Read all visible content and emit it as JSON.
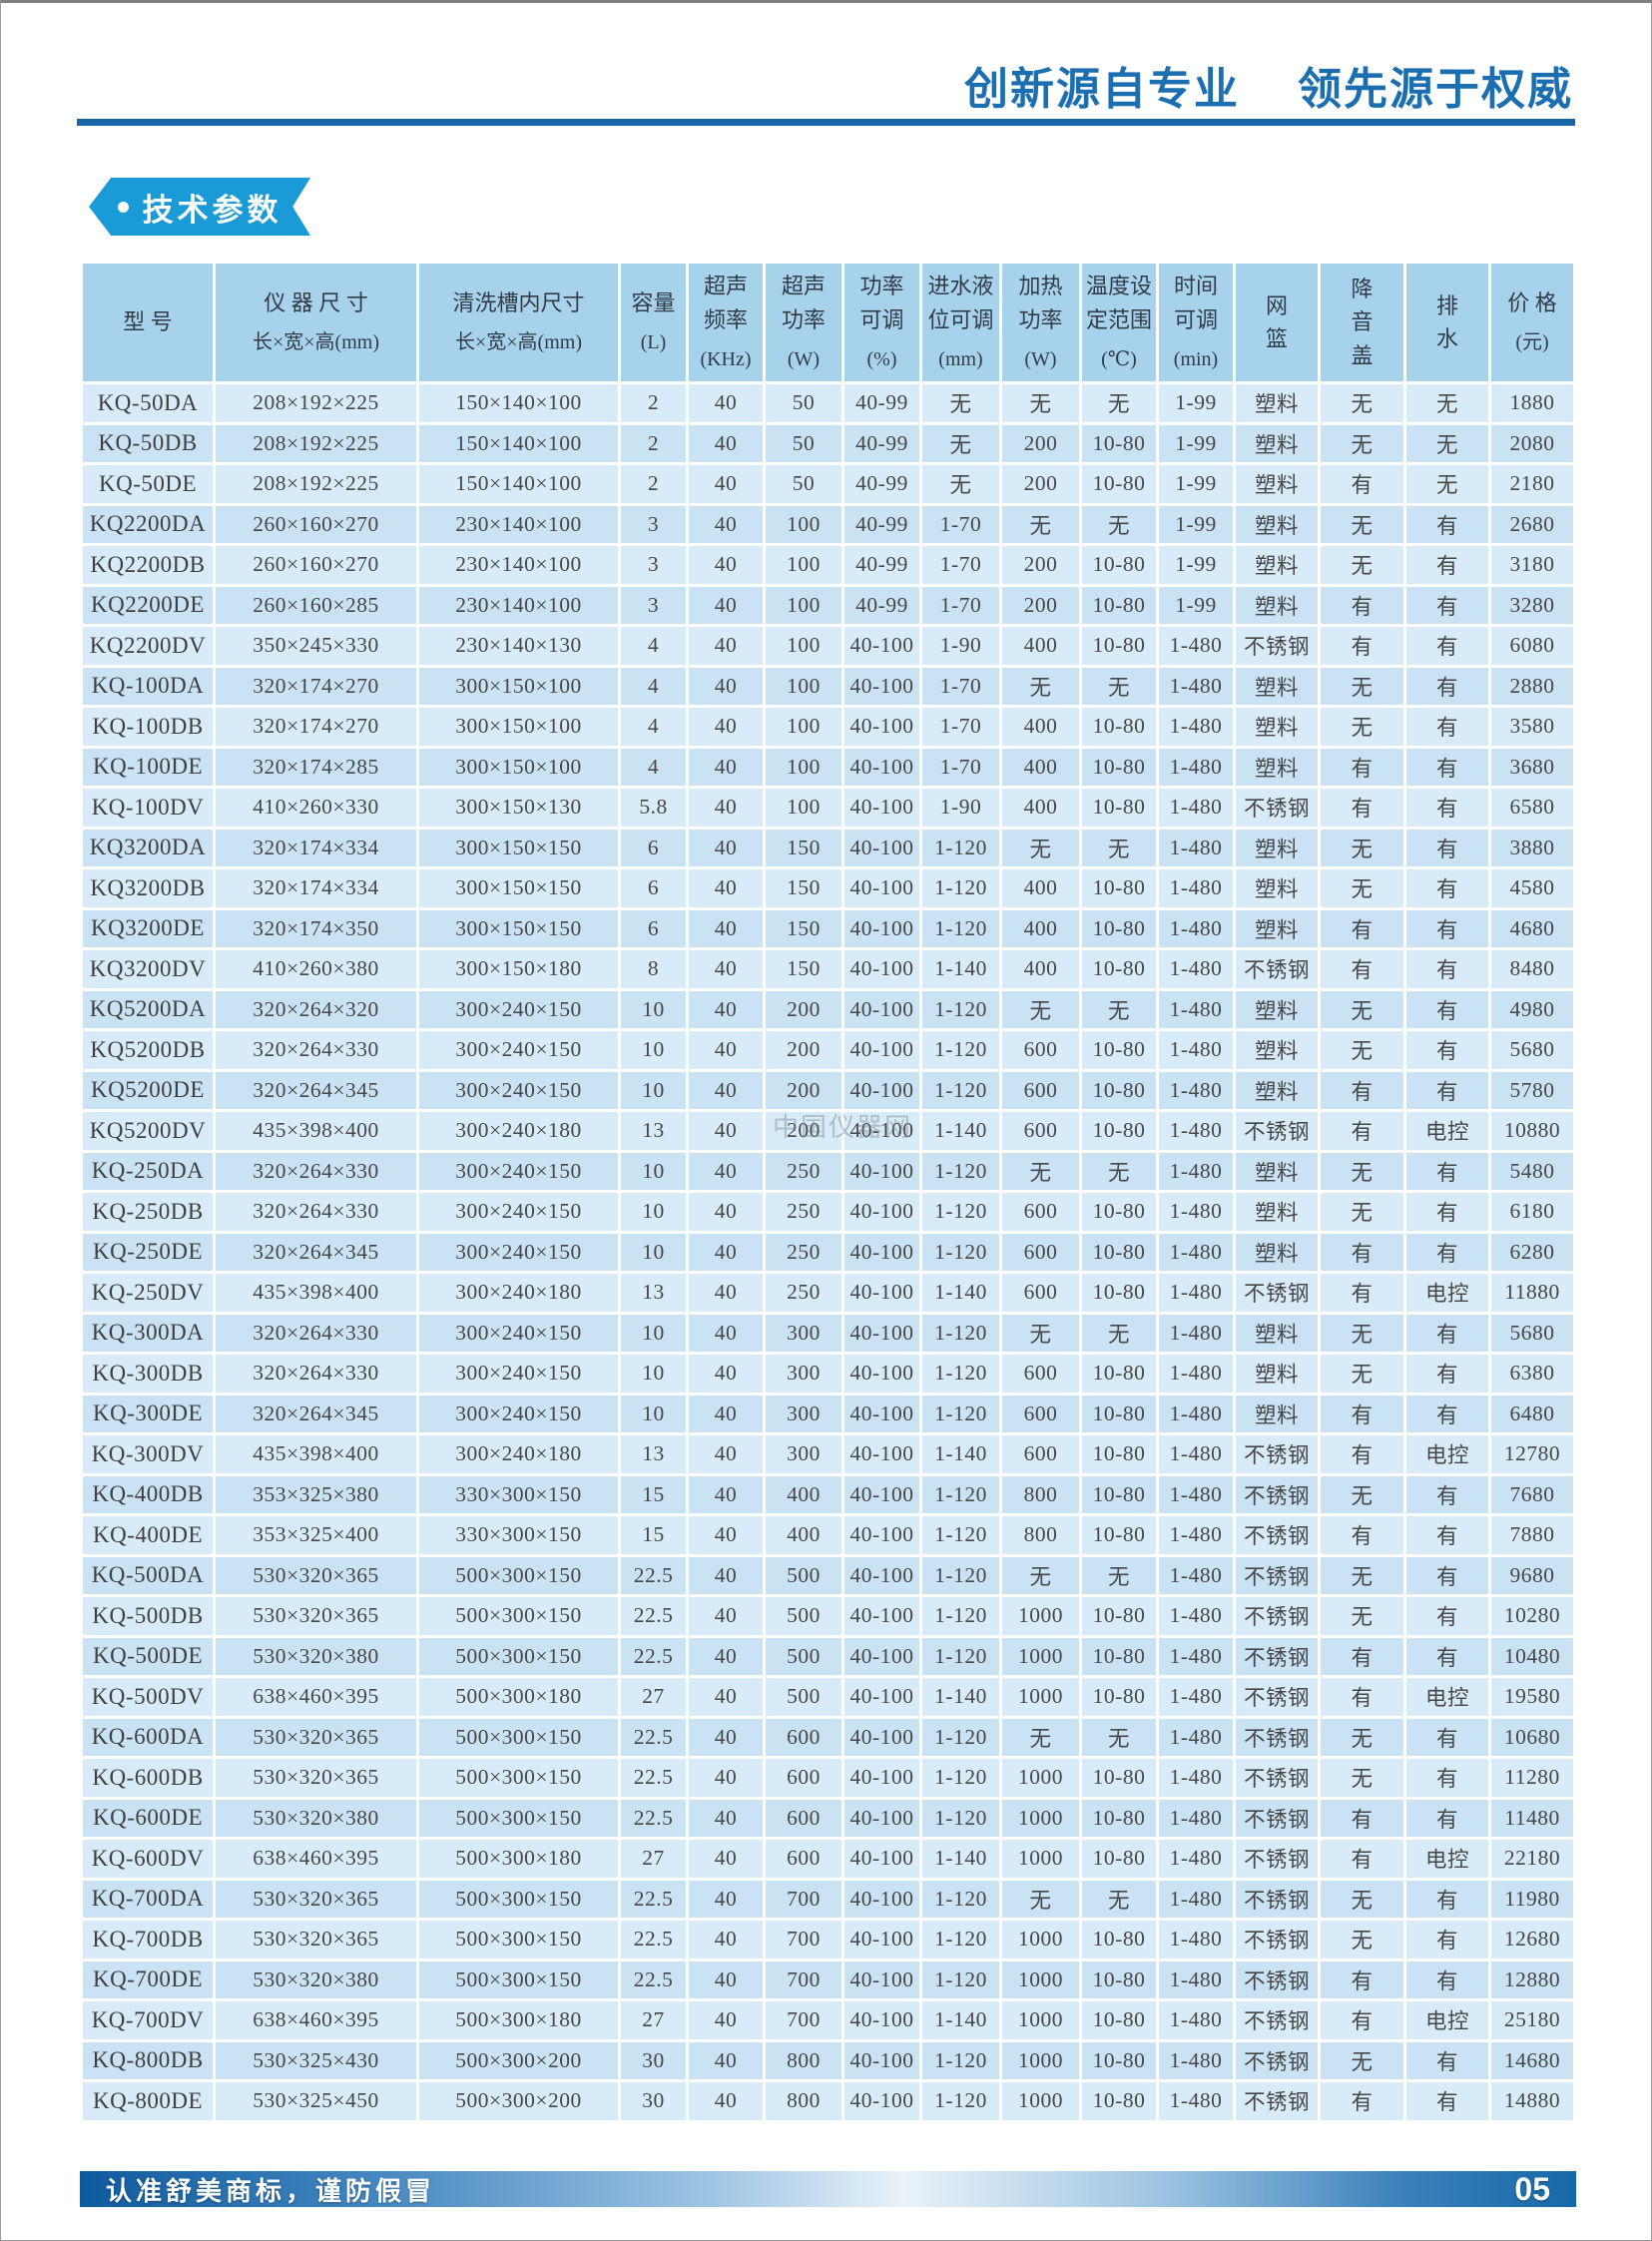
{
  "page": {
    "header_title_left": "创新源自专业",
    "header_title_right": "领先源于权威",
    "section_badge": "技术参数",
    "watermark": "中国仪器网",
    "footer": {
      "slogan": "认准舒美商标，谨防假冒",
      "page_number": "05"
    },
    "colors": {
      "title_blue": "#1b6fb0",
      "rule_blue": "#1766a9",
      "badge_blue": "#1a9bd7",
      "header_bg": "#a6d2ec",
      "row_light": "#d8ebf8",
      "row_dark": "#c9e2f4"
    }
  },
  "table": {
    "columns": [
      {
        "lines": [
          "型  号"
        ],
        "unit": ""
      },
      {
        "lines": [
          "仪 器 尺 寸"
        ],
        "unit": "长×宽×高(mm)"
      },
      {
        "lines": [
          "清洗槽内尺寸"
        ],
        "unit": "长×宽×高(mm)"
      },
      {
        "lines": [
          "容量"
        ],
        "unit": "(L)"
      },
      {
        "lines": [
          "超声",
          "频率"
        ],
        "unit": "(KHz)"
      },
      {
        "lines": [
          "超声",
          "功率"
        ],
        "unit": "(W)"
      },
      {
        "lines": [
          "功率",
          "可调"
        ],
        "unit": "(%)"
      },
      {
        "lines": [
          "进水液",
          "位可调"
        ],
        "unit": "(mm)"
      },
      {
        "lines": [
          "加热",
          "功率"
        ],
        "unit": "(W)"
      },
      {
        "lines": [
          "温度设",
          "定范围"
        ],
        "unit": "(℃)"
      },
      {
        "lines": [
          "时间",
          "可调"
        ],
        "unit": "(min)"
      },
      {
        "lines": [
          "网",
          "篮"
        ],
        "unit": ""
      },
      {
        "lines": [
          "降",
          "音",
          "盖"
        ],
        "unit": ""
      },
      {
        "lines": [
          "排",
          "水"
        ],
        "unit": ""
      },
      {
        "lines": [
          "价 格"
        ],
        "unit": "(元)"
      }
    ],
    "rows": [
      [
        "KQ-50DA",
        "208×192×225",
        "150×140×100",
        "2",
        "40",
        "50",
        "40-99",
        "无",
        "无",
        "无",
        "1-99",
        "塑料",
        "无",
        "无",
        "1880"
      ],
      [
        "KQ-50DB",
        "208×192×225",
        "150×140×100",
        "2",
        "40",
        "50",
        "40-99",
        "无",
        "200",
        "10-80",
        "1-99",
        "塑料",
        "无",
        "无",
        "2080"
      ],
      [
        "KQ-50DE",
        "208×192×225",
        "150×140×100",
        "2",
        "40",
        "50",
        "40-99",
        "无",
        "200",
        "10-80",
        "1-99",
        "塑料",
        "有",
        "无",
        "2180"
      ],
      [
        "KQ2200DA",
        "260×160×270",
        "230×140×100",
        "3",
        "40",
        "100",
        "40-99",
        "1-70",
        "无",
        "无",
        "1-99",
        "塑料",
        "无",
        "有",
        "2680"
      ],
      [
        "KQ2200DB",
        "260×160×270",
        "230×140×100",
        "3",
        "40",
        "100",
        "40-99",
        "1-70",
        "200",
        "10-80",
        "1-99",
        "塑料",
        "无",
        "有",
        "3180"
      ],
      [
        "KQ2200DE",
        "260×160×285",
        "230×140×100",
        "3",
        "40",
        "100",
        "40-99",
        "1-70",
        "200",
        "10-80",
        "1-99",
        "塑料",
        "有",
        "有",
        "3280"
      ],
      [
        "KQ2200DV",
        "350×245×330",
        "230×140×130",
        "4",
        "40",
        "100",
        "40-100",
        "1-90",
        "400",
        "10-80",
        "1-480",
        "不锈钢",
        "有",
        "有",
        "6080"
      ],
      [
        "KQ-100DA",
        "320×174×270",
        "300×150×100",
        "4",
        "40",
        "100",
        "40-100",
        "1-70",
        "无",
        "无",
        "1-480",
        "塑料",
        "无",
        "有",
        "2880"
      ],
      [
        "KQ-100DB",
        "320×174×270",
        "300×150×100",
        "4",
        "40",
        "100",
        "40-100",
        "1-70",
        "400",
        "10-80",
        "1-480",
        "塑料",
        "无",
        "有",
        "3580"
      ],
      [
        "KQ-100DE",
        "320×174×285",
        "300×150×100",
        "4",
        "40",
        "100",
        "40-100",
        "1-70",
        "400",
        "10-80",
        "1-480",
        "塑料",
        "有",
        "有",
        "3680"
      ],
      [
        "KQ-100DV",
        "410×260×330",
        "300×150×130",
        "5.8",
        "40",
        "100",
        "40-100",
        "1-90",
        "400",
        "10-80",
        "1-480",
        "不锈钢",
        "有",
        "有",
        "6580"
      ],
      [
        "KQ3200DA",
        "320×174×334",
        "300×150×150",
        "6",
        "40",
        "150",
        "40-100",
        "1-120",
        "无",
        "无",
        "1-480",
        "塑料",
        "无",
        "有",
        "3880"
      ],
      [
        "KQ3200DB",
        "320×174×334",
        "300×150×150",
        "6",
        "40",
        "150",
        "40-100",
        "1-120",
        "400",
        "10-80",
        "1-480",
        "塑料",
        "无",
        "有",
        "4580"
      ],
      [
        "KQ3200DE",
        "320×174×350",
        "300×150×150",
        "6",
        "40",
        "150",
        "40-100",
        "1-120",
        "400",
        "10-80",
        "1-480",
        "塑料",
        "有",
        "有",
        "4680"
      ],
      [
        "KQ3200DV",
        "410×260×380",
        "300×150×180",
        "8",
        "40",
        "150",
        "40-100",
        "1-140",
        "400",
        "10-80",
        "1-480",
        "不锈钢",
        "有",
        "有",
        "8480"
      ],
      [
        "KQ5200DA",
        "320×264×320",
        "300×240×150",
        "10",
        "40",
        "200",
        "40-100",
        "1-120",
        "无",
        "无",
        "1-480",
        "塑料",
        "无",
        "有",
        "4980"
      ],
      [
        "KQ5200DB",
        "320×264×330",
        "300×240×150",
        "10",
        "40",
        "200",
        "40-100",
        "1-120",
        "600",
        "10-80",
        "1-480",
        "塑料",
        "无",
        "有",
        "5680"
      ],
      [
        "KQ5200DE",
        "320×264×345",
        "300×240×150",
        "10",
        "40",
        "200",
        "40-100",
        "1-120",
        "600",
        "10-80",
        "1-480",
        "塑料",
        "有",
        "有",
        "5780"
      ],
      [
        "KQ5200DV",
        "435×398×400",
        "300×240×180",
        "13",
        "40",
        "200",
        "40-100",
        "1-140",
        "600",
        "10-80",
        "1-480",
        "不锈钢",
        "有",
        "电控",
        "10880"
      ],
      [
        "KQ-250DA",
        "320×264×330",
        "300×240×150",
        "10",
        "40",
        "250",
        "40-100",
        "1-120",
        "无",
        "无",
        "1-480",
        "塑料",
        "无",
        "有",
        "5480"
      ],
      [
        "KQ-250DB",
        "320×264×330",
        "300×240×150",
        "10",
        "40",
        "250",
        "40-100",
        "1-120",
        "600",
        "10-80",
        "1-480",
        "塑料",
        "无",
        "有",
        "6180"
      ],
      [
        "KQ-250DE",
        "320×264×345",
        "300×240×150",
        "10",
        "40",
        "250",
        "40-100",
        "1-120",
        "600",
        "10-80",
        "1-480",
        "塑料",
        "有",
        "有",
        "6280"
      ],
      [
        "KQ-250DV",
        "435×398×400",
        "300×240×180",
        "13",
        "40",
        "250",
        "40-100",
        "1-140",
        "600",
        "10-80",
        "1-480",
        "不锈钢",
        "有",
        "电控",
        "11880"
      ],
      [
        "KQ-300DA",
        "320×264×330",
        "300×240×150",
        "10",
        "40",
        "300",
        "40-100",
        "1-120",
        "无",
        "无",
        "1-480",
        "塑料",
        "无",
        "有",
        "5680"
      ],
      [
        "KQ-300DB",
        "320×264×330",
        "300×240×150",
        "10",
        "40",
        "300",
        "40-100",
        "1-120",
        "600",
        "10-80",
        "1-480",
        "塑料",
        "无",
        "有",
        "6380"
      ],
      [
        "KQ-300DE",
        "320×264×345",
        "300×240×150",
        "10",
        "40",
        "300",
        "40-100",
        "1-120",
        "600",
        "10-80",
        "1-480",
        "塑料",
        "有",
        "有",
        "6480"
      ],
      [
        "KQ-300DV",
        "435×398×400",
        "300×240×180",
        "13",
        "40",
        "300",
        "40-100",
        "1-140",
        "600",
        "10-80",
        "1-480",
        "不锈钢",
        "有",
        "电控",
        "12780"
      ],
      [
        "KQ-400DB",
        "353×325×380",
        "330×300×150",
        "15",
        "40",
        "400",
        "40-100",
        "1-120",
        "800",
        "10-80",
        "1-480",
        "不锈钢",
        "无",
        "有",
        "7680"
      ],
      [
        "KQ-400DE",
        "353×325×400",
        "330×300×150",
        "15",
        "40",
        "400",
        "40-100",
        "1-120",
        "800",
        "10-80",
        "1-480",
        "不锈钢",
        "有",
        "有",
        "7880"
      ],
      [
        "KQ-500DA",
        "530×320×365",
        "500×300×150",
        "22.5",
        "40",
        "500",
        "40-100",
        "1-120",
        "无",
        "无",
        "1-480",
        "不锈钢",
        "无",
        "有",
        "9680"
      ],
      [
        "KQ-500DB",
        "530×320×365",
        "500×300×150",
        "22.5",
        "40",
        "500",
        "40-100",
        "1-120",
        "1000",
        "10-80",
        "1-480",
        "不锈钢",
        "无",
        "有",
        "10280"
      ],
      [
        "KQ-500DE",
        "530×320×380",
        "500×300×150",
        "22.5",
        "40",
        "500",
        "40-100",
        "1-120",
        "1000",
        "10-80",
        "1-480",
        "不锈钢",
        "有",
        "有",
        "10480"
      ],
      [
        "KQ-500DV",
        "638×460×395",
        "500×300×180",
        "27",
        "40",
        "500",
        "40-100",
        "1-140",
        "1000",
        "10-80",
        "1-480",
        "不锈钢",
        "有",
        "电控",
        "19580"
      ],
      [
        "KQ-600DA",
        "530×320×365",
        "500×300×150",
        "22.5",
        "40",
        "600",
        "40-100",
        "1-120",
        "无",
        "无",
        "1-480",
        "不锈钢",
        "无",
        "有",
        "10680"
      ],
      [
        "KQ-600DB",
        "530×320×365",
        "500×300×150",
        "22.5",
        "40",
        "600",
        "40-100",
        "1-120",
        "1000",
        "10-80",
        "1-480",
        "不锈钢",
        "无",
        "有",
        "11280"
      ],
      [
        "KQ-600DE",
        "530×320×380",
        "500×300×150",
        "22.5",
        "40",
        "600",
        "40-100",
        "1-120",
        "1000",
        "10-80",
        "1-480",
        "不锈钢",
        "有",
        "有",
        "11480"
      ],
      [
        "KQ-600DV",
        "638×460×395",
        "500×300×180",
        "27",
        "40",
        "600",
        "40-100",
        "1-140",
        "1000",
        "10-80",
        "1-480",
        "不锈钢",
        "有",
        "电控",
        "22180"
      ],
      [
        "KQ-700DA",
        "530×320×365",
        "500×300×150",
        "22.5",
        "40",
        "700",
        "40-100",
        "1-120",
        "无",
        "无",
        "1-480",
        "不锈钢",
        "无",
        "有",
        "11980"
      ],
      [
        "KQ-700DB",
        "530×320×365",
        "500×300×150",
        "22.5",
        "40",
        "700",
        "40-100",
        "1-120",
        "1000",
        "10-80",
        "1-480",
        "不锈钢",
        "无",
        "有",
        "12680"
      ],
      [
        "KQ-700DE",
        "530×320×380",
        "500×300×150",
        "22.5",
        "40",
        "700",
        "40-100",
        "1-120",
        "1000",
        "10-80",
        "1-480",
        "不锈钢",
        "有",
        "有",
        "12880"
      ],
      [
        "KQ-700DV",
        "638×460×395",
        "500×300×180",
        "27",
        "40",
        "700",
        "40-100",
        "1-140",
        "1000",
        "10-80",
        "1-480",
        "不锈钢",
        "有",
        "电控",
        "25180"
      ],
      [
        "KQ-800DB",
        "530×325×430",
        "500×300×200",
        "30",
        "40",
        "800",
        "40-100",
        "1-120",
        "1000",
        "10-80",
        "1-480",
        "不锈钢",
        "无",
        "有",
        "14680"
      ],
      [
        "KQ-800DE",
        "530×325×450",
        "500×300×200",
        "30",
        "40",
        "800",
        "40-100",
        "1-120",
        "1000",
        "10-80",
        "1-480",
        "不锈钢",
        "有",
        "有",
        "14880"
      ]
    ]
  }
}
